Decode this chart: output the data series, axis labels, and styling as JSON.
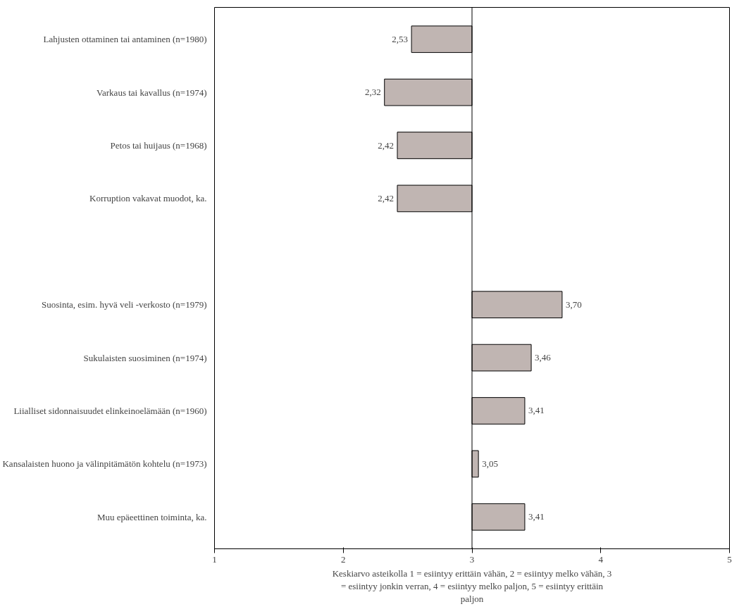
{
  "chart_data": {
    "type": "bar",
    "orientation": "horizontal",
    "categories": [
      "Lahjusten ottaminen tai antaminen (n=1980)",
      "Varkaus tai kavallus (n=1974)",
      "Petos tai huijaus (n=1968)",
      "Korruption vakavat muodot, ka.",
      null,
      "Suosinta, esim. hyvä veli -verkosto (n=1979)",
      "Sukulaisten suosiminen (n=1974)",
      "Liialliset sidonnaisuudet elinkeinoelämään (n=1960)",
      "Kansalaisten huono ja välinpitämätön kohtelu (n=1973)",
      "Muu epäeettinen toiminta, ka."
    ],
    "base": [
      3,
      3,
      3,
      3,
      null,
      3,
      3,
      3,
      3,
      3
    ],
    "values": [
      -0.47,
      -0.68,
      -0.58,
      -0.58,
      null,
      0.7,
      0.46,
      0.41,
      0.05,
      0.41
    ],
    "value_labels": [
      "2,53",
      "2,32",
      "2,42",
      "2,42",
      null,
      "3,70",
      "3,46",
      "3,41",
      "3,05",
      "3,41"
    ],
    "color": "#c0b5b2",
    "xlim": [
      1,
      5
    ],
    "xticks": [
      1,
      2,
      3,
      4,
      5
    ],
    "xlabel": "Keskiarvo asteikolla 1 = esiintyy erittäin vähän, 2 = esiintyy melko vähän, 3 = esiintyy jonkin verran, 4 = esiintyy melko paljon, 5 = esiintyy erittäin paljon",
    "ref_lines": [
      {
        "axis": "x",
        "value": 3,
        "color": "#000000"
      }
    ],
    "grid": false
  }
}
